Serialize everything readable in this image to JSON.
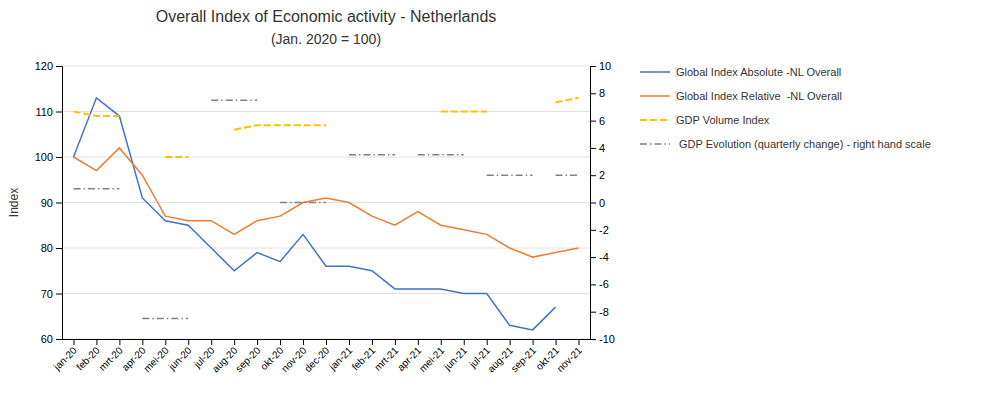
{
  "chart_data": {
    "type": "line",
    "title": "Overall Index of Economic activity - Netherlands",
    "subtitle": "(Jan. 2020 = 100)",
    "y_label": "Index",
    "categories": [
      "jan-20",
      "feb-20",
      "mrt-20",
      "apr-20",
      "mei-20",
      "jun-20",
      "jul-20",
      "aug-20",
      "sep-20",
      "okt-20",
      "nov-20",
      "dec-20",
      "jan-21",
      "feb-21",
      "mrt-21",
      "apr-21",
      "mei-21",
      "jun-21",
      "jul-21",
      "aug-21",
      "sep-21",
      "okt-21",
      "nov-21"
    ],
    "ylim": [
      60,
      120
    ],
    "yticks": [
      60,
      70,
      80,
      90,
      100,
      110,
      120
    ],
    "y2lim": [
      -10,
      10
    ],
    "y2ticks": [
      -10,
      -8,
      -6,
      -4,
      -2,
      0,
      2,
      4,
      6,
      8,
      10
    ],
    "grid": true,
    "legend": "right",
    "series": [
      {
        "name": "Global Index Absolute -NL Overall",
        "color": "#4472C4",
        "line_style": "solid",
        "values": [
          100,
          113,
          109,
          91,
          86,
          85,
          80,
          75,
          79,
          77,
          83,
          76,
          76,
          75,
          71,
          71,
          71,
          70,
          70,
          63,
          62,
          67,
          null
        ]
      },
      {
        "name": "Global Index Relative  -NL Overall",
        "color": "#ED7D31",
        "line_style": "solid",
        "values": [
          100,
          97,
          102,
          96,
          87,
          86,
          86,
          83,
          86,
          87,
          90,
          91,
          90,
          87,
          85,
          88,
          85,
          84,
          83,
          80,
          78,
          79,
          80
        ]
      },
      {
        "name": "GDP Volume Index",
        "color": "#FFC000",
        "line_style": "dashed",
        "values": [
          110,
          109,
          109,
          null,
          100,
          100,
          null,
          106,
          107,
          107,
          107,
          107,
          null,
          null,
          null,
          null,
          110,
          110,
          110,
          null,
          null,
          112,
          113
        ]
      },
      {
        "name": " GDP Evolution (quarterly change) - right hand scale",
        "color": "#808080",
        "line_style": "dashdot",
        "axis": "y2",
        "x": [
          "jan-20",
          "mrt-20",
          null,
          "apr-20",
          "jun-20",
          null,
          "jul-20",
          "sep-20",
          null,
          "okt-20",
          "dec-20",
          null,
          "jan-21",
          "mrt-21",
          null,
          "apr-21",
          "jun-21",
          null,
          "jul-21",
          "sep-21",
          null,
          "okt-21",
          "nov-21"
        ],
        "values": [
          1.0,
          1.0,
          null,
          -8.5,
          -8.5,
          null,
          7.5,
          7.5,
          null,
          0.0,
          0.0,
          null,
          3.5,
          3.5,
          null,
          3.5,
          3.5,
          null,
          2.0,
          2.0,
          null,
          2.0,
          2.0
        ]
      }
    ]
  }
}
